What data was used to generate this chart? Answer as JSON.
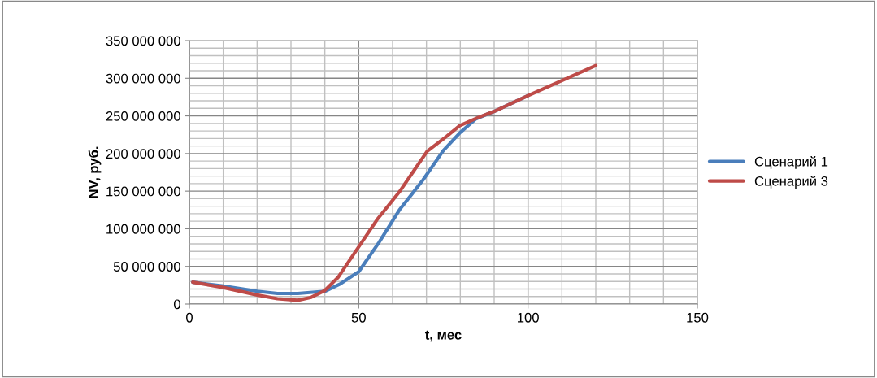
{
  "chart_data": {
    "type": "line",
    "xlabel": "t, мес",
    "ylabel": "NV, руб.",
    "xlim": [
      0,
      150
    ],
    "xticks": [
      0,
      50,
      100,
      150
    ],
    "ylim": [
      0,
      350000000
    ],
    "yticks": [
      {
        "value": 0,
        "label": "0"
      },
      {
        "value": 50000000,
        "label": "50 000 000"
      },
      {
        "value": 100000000,
        "label": "100 000 000"
      },
      {
        "value": 150000000,
        "label": "150 000 000"
      },
      {
        "value": 200000000,
        "label": "200 000 000"
      },
      {
        "value": 250000000,
        "label": "250 000 000"
      },
      {
        "value": 300000000,
        "label": "300 000 000"
      },
      {
        "value": 350000000,
        "label": "350 000 000"
      }
    ],
    "grid": true,
    "legend": "right",
    "marker": "none",
    "line_style": "solid",
    "series": [
      {
        "name": "Сценарий 1",
        "color": "#4a7ebb",
        "x": [
          1,
          10,
          20,
          26,
          32,
          40,
          44.6,
          50,
          56,
          62,
          69,
          75,
          80,
          84.6,
          90,
          100
        ],
        "values": [
          29000000,
          24000000,
          17000000,
          14000000,
          14000000,
          17000000,
          27000000,
          43000000,
          82000000,
          125000000,
          165000000,
          204000000,
          228000000,
          246000000,
          256000000,
          277000000
        ]
      },
      {
        "name": "Сценарий 3",
        "color": "#be4b48",
        "x": [
          1,
          10,
          20,
          26,
          32,
          36,
          40,
          44,
          50,
          55.4,
          62,
          70.2,
          76,
          79.8,
          85.4,
          90,
          100,
          110,
          120
        ],
        "values": [
          29000000,
          22000000,
          12000000,
          7000000,
          5000000,
          9000000,
          18000000,
          36000000,
          76000000,
          112000000,
          149000000,
          203000000,
          223000000,
          237000000,
          248000000,
          256000000,
          277000000,
          297000000,
          317000000
        ]
      }
    ]
  }
}
